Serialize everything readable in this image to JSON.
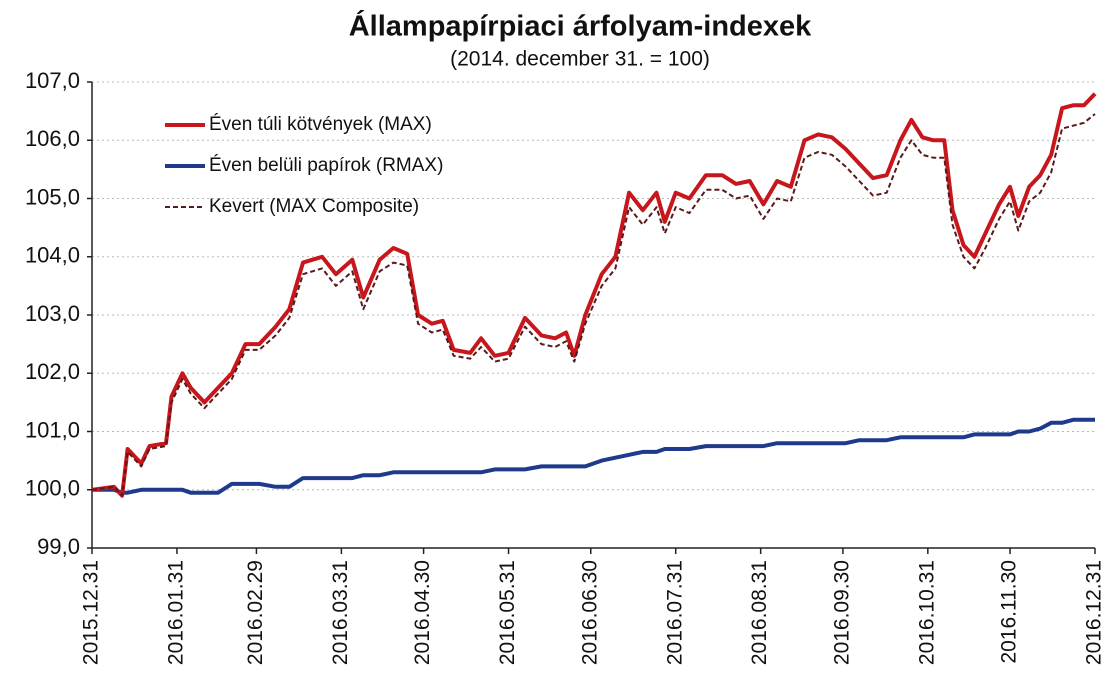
{
  "chart_data": {
    "type": "line",
    "title": "Állampapírpiaci árfolyam-indexek",
    "subtitle": "(2014. december 31. = 100)",
    "x": [
      "2015.12.31",
      "2016.01.08",
      "2016.01.11",
      "2016.01.13",
      "2016.01.18",
      "2016.01.21",
      "2016.01.27",
      "2016.01.29",
      "2016.02.02",
      "2016.02.05",
      "2016.02.10",
      "2016.02.15",
      "2016.02.20",
      "2016.02.25",
      "2016.03.01",
      "2016.03.07",
      "2016.03.12",
      "2016.03.17",
      "2016.03.24",
      "2016.03.29",
      "2016.04.04",
      "2016.04.08",
      "2016.04.14",
      "2016.04.19",
      "2016.04.24",
      "2016.04.28",
      "2016.05.03",
      "2016.05.07",
      "2016.05.11",
      "2016.05.17",
      "2016.05.21",
      "2016.05.26",
      "2016.05.31",
      "2016.06.06",
      "2016.06.12",
      "2016.06.17",
      "2016.06.21",
      "2016.06.24",
      "2016.06.28",
      "2016.07.04",
      "2016.07.09",
      "2016.07.14",
      "2016.07.19",
      "2016.07.24",
      "2016.07.27",
      "2016.07.31",
      "2016.08.05",
      "2016.08.11",
      "2016.08.17",
      "2016.08.22",
      "2016.08.27",
      "2016.09.01",
      "2016.09.06",
      "2016.09.11",
      "2016.09.16",
      "2016.09.21",
      "2016.09.26",
      "2016.10.01",
      "2016.10.06",
      "2016.10.11",
      "2016.10.16",
      "2016.10.21",
      "2016.10.25",
      "2016.10.29",
      "2016.11.02",
      "2016.11.06",
      "2016.11.09",
      "2016.11.13",
      "2016.11.17",
      "2016.11.21",
      "2016.11.26",
      "2016.11.30",
      "2016.12.03",
      "2016.12.07",
      "2016.12.11",
      "2016.12.15",
      "2016.12.19",
      "2016.12.23",
      "2016.12.27",
      "2016.12.31"
    ],
    "series": [
      {
        "name": "Éven túli kötvények (MAX)",
        "color": "#c8161d",
        "style": "solid",
        "values": [
          100.0,
          100.05,
          99.9,
          100.7,
          100.45,
          100.75,
          100.8,
          101.6,
          102.0,
          101.75,
          101.5,
          101.75,
          102.0,
          102.5,
          102.5,
          102.8,
          103.1,
          103.9,
          104.0,
          103.7,
          103.95,
          103.3,
          103.95,
          104.15,
          104.05,
          103.0,
          102.85,
          102.9,
          102.4,
          102.35,
          102.6,
          102.3,
          102.35,
          102.95,
          102.65,
          102.6,
          102.7,
          102.3,
          103.0,
          103.7,
          104.0,
          105.1,
          104.8,
          105.1,
          104.6,
          105.1,
          105.0,
          105.4,
          105.4,
          105.25,
          105.3,
          104.9,
          105.3,
          105.2,
          106.0,
          106.1,
          106.05,
          105.85,
          105.6,
          105.35,
          105.4,
          106.0,
          106.35,
          106.05,
          106.0,
          106.0,
          104.8,
          104.2,
          104.0,
          104.4,
          104.9,
          105.2,
          104.7,
          105.2,
          105.4,
          105.75,
          106.55,
          106.6,
          106.6,
          106.8
        ]
      },
      {
        "name": "Éven belüli papírok (RMAX)",
        "color": "#1f3a8c",
        "style": "solid",
        "values": [
          100.0,
          100.0,
          99.95,
          99.95,
          100.0,
          100.0,
          100.0,
          100.0,
          100.0,
          99.95,
          99.95,
          99.95,
          100.1,
          100.1,
          100.1,
          100.05,
          100.05,
          100.2,
          100.2,
          100.2,
          100.2,
          100.25,
          100.25,
          100.3,
          100.3,
          100.3,
          100.3,
          100.3,
          100.3,
          100.3,
          100.3,
          100.35,
          100.35,
          100.35,
          100.4,
          100.4,
          100.4,
          100.4,
          100.4,
          100.5,
          100.55,
          100.6,
          100.65,
          100.65,
          100.7,
          100.7,
          100.7,
          100.75,
          100.75,
          100.75,
          100.75,
          100.75,
          100.8,
          100.8,
          100.8,
          100.8,
          100.8,
          100.8,
          100.85,
          100.85,
          100.85,
          100.9,
          100.9,
          100.9,
          100.9,
          100.9,
          100.9,
          100.9,
          100.95,
          100.95,
          100.95,
          100.95,
          101.0,
          101.0,
          101.05,
          101.15,
          101.15,
          101.2,
          101.2,
          101.2
        ]
      },
      {
        "name": "Kevert (MAX Composite)",
        "color": "#5a1a1a",
        "style": "dashed",
        "values": [
          100.0,
          100.05,
          99.9,
          100.65,
          100.4,
          100.7,
          100.75,
          101.5,
          101.9,
          101.65,
          101.4,
          101.65,
          101.9,
          102.4,
          102.4,
          102.65,
          102.95,
          103.7,
          103.8,
          103.5,
          103.75,
          103.1,
          103.75,
          103.9,
          103.85,
          102.85,
          102.7,
          102.75,
          102.3,
          102.25,
          102.45,
          102.2,
          102.25,
          102.8,
          102.5,
          102.45,
          102.55,
          102.2,
          102.85,
          103.5,
          103.8,
          104.85,
          104.55,
          104.85,
          104.4,
          104.85,
          104.75,
          105.15,
          105.15,
          105.0,
          105.05,
          104.65,
          105.0,
          104.95,
          105.7,
          105.8,
          105.75,
          105.55,
          105.3,
          105.05,
          105.1,
          105.7,
          106.0,
          105.75,
          105.7,
          105.7,
          104.55,
          104.0,
          103.8,
          104.15,
          104.65,
          104.95,
          104.45,
          104.95,
          105.1,
          105.45,
          106.2,
          106.25,
          106.3,
          106.45
        ]
      }
    ],
    "xlim": [
      "2015.12.31",
      "2016.12.31"
    ],
    "xticks": [
      "2015.12.31",
      "2016.01.31",
      "2016.02.29",
      "2016.03.31",
      "2016.04.30",
      "2016.05.31",
      "2016.06.30",
      "2016.07.31",
      "2016.08.31",
      "2016.09.30",
      "2016.10.31",
      "2016.11.30",
      "2016.12.31"
    ],
    "ylim": [
      99,
      107
    ],
    "yticks": [
      {
        "value": 99,
        "label": "99,0"
      },
      {
        "value": 100,
        "label": "100,0"
      },
      {
        "value": 101,
        "label": "101,0"
      },
      {
        "value": 102,
        "label": "102,0"
      },
      {
        "value": 103,
        "label": "103,0"
      },
      {
        "value": 104,
        "label": "104,0"
      },
      {
        "value": 105,
        "label": "105,0"
      },
      {
        "value": 106,
        "label": "106,0"
      },
      {
        "value": 107,
        "label": "107,0"
      }
    ],
    "grid": true,
    "legend": "upper left"
  }
}
